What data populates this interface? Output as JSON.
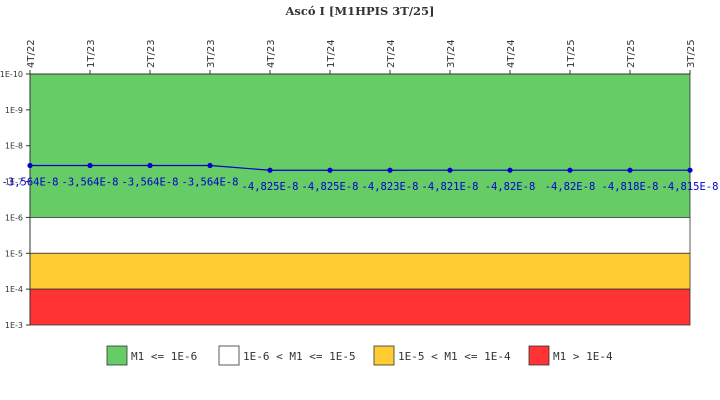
{
  "chart_data": {
    "type": "line",
    "title": "Ascó I [M1HPIS 3T/25]",
    "x": [
      "4T/22",
      "1T/23",
      "2T/23",
      "3T/23",
      "4T/23",
      "1T/24",
      "2T/24",
      "3T/24",
      "4T/24",
      "1T/25",
      "2T/25",
      "3T/25"
    ],
    "series": [
      {
        "values": [
          -3.564e-08,
          -3.564e-08,
          -3.564e-08,
          -3.564e-08,
          -4.825e-08,
          -4.825e-08,
          -4.823e-08,
          -4.821e-08,
          -4.82e-08,
          -4.82e-08,
          -4.818e-08,
          -4.815e-08
        ],
        "data_labels": [
          "-3,564E-8",
          "-3,564E-8",
          "-3,564E-8",
          "-3,564E-8",
          "-4,825E-8",
          "-4,825E-8",
          "-4,823E-8",
          "-4,821E-8",
          "-4,82E-8",
          "-4,82E-8",
          "-4,818E-8",
          "-4,815E-8"
        ],
        "color": "#0000cc"
      }
    ],
    "yscale": "log",
    "y_reversed": true,
    "ylim": [
      1e-10,
      0.001
    ],
    "y_ticks": [
      {
        "value": 1e-10,
        "label": "1E-10"
      },
      {
        "value": 1e-09,
        "label": "1E-9"
      },
      {
        "value": 1e-08,
        "label": "1E-8"
      },
      {
        "value": 1e-07,
        "label": "1E-7"
      },
      {
        "value": 1e-06,
        "label": "1E-6"
      },
      {
        "value": 1e-05,
        "label": "1E-5"
      },
      {
        "value": 0.0001,
        "label": "1E-4"
      },
      {
        "value": 0.001,
        "label": "1E-3"
      }
    ],
    "bands": [
      {
        "from": 1e-10,
        "to": 1e-06,
        "color": "#66cc66",
        "label": "M1 <= 1E-6"
      },
      {
        "from": 1e-06,
        "to": 1e-05,
        "color": "#ffffff",
        "label": "1E-6 < M1 <= 1E-5"
      },
      {
        "from": 1e-05,
        "to": 0.0001,
        "color": "#ffcc33",
        "label": "1E-5 < M1 <= 1E-4"
      },
      {
        "from": 0.0001,
        "to": 0.001,
        "color": "#ff3333",
        "label": "M1 > 1E-4"
      }
    ],
    "legend_position": "bottom"
  }
}
